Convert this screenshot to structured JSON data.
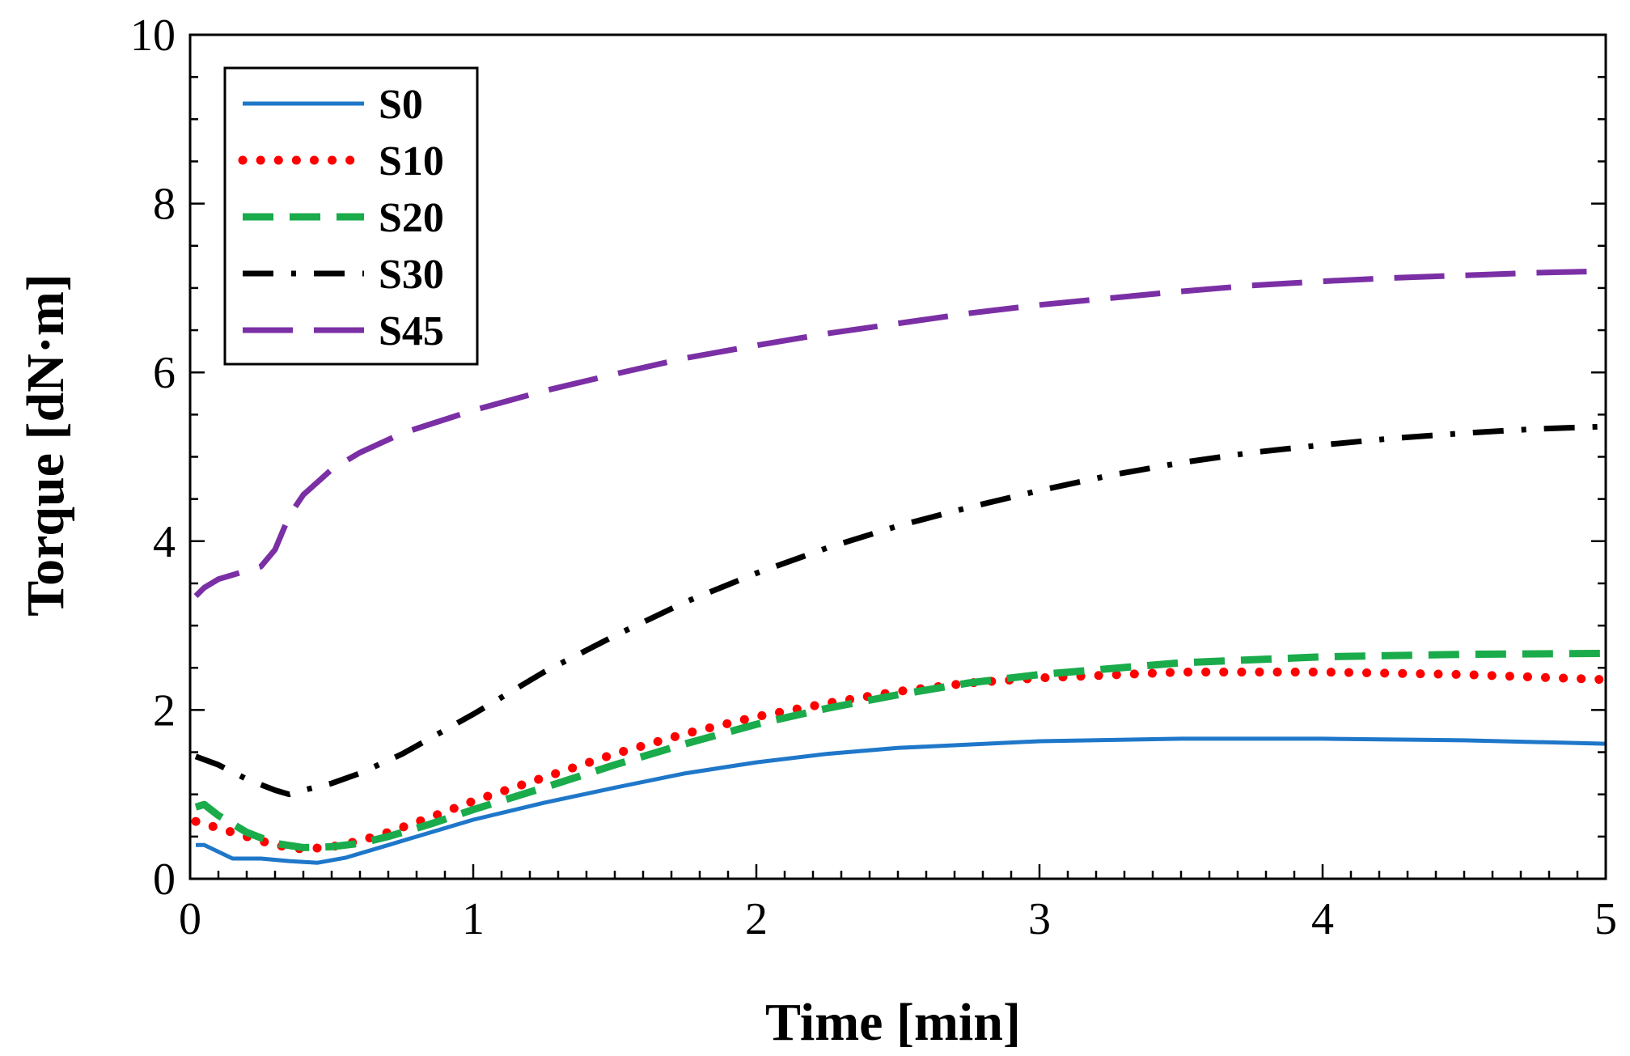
{
  "chart_data": {
    "type": "line",
    "title": "",
    "xlabel": "Time [min]",
    "ylabel": "Torque [dN·m]",
    "xlim": [
      0,
      5
    ],
    "ylim": [
      0,
      10
    ],
    "xticks": [
      0,
      1,
      2,
      3,
      4,
      5
    ],
    "yticks": [
      0,
      2,
      4,
      6,
      8,
      10
    ],
    "xtick_labels": [
      "0",
      "1",
      "2",
      "3",
      "4",
      "5"
    ],
    "ytick_labels": [
      "0",
      "2",
      "4",
      "6",
      "8",
      "10"
    ],
    "grid": false,
    "legend_position": "top-left",
    "series": [
      {
        "name": "S0",
        "color": "#1f77c9",
        "style": "solid",
        "x": [
          0.02,
          0.05,
          0.1,
          0.15,
          0.25,
          0.35,
          0.45,
          0.55,
          0.7,
          0.85,
          1.0,
          1.25,
          1.5,
          1.75,
          2.0,
          2.25,
          2.5,
          3.0,
          3.5,
          4.0,
          4.5,
          5.0
        ],
        "y": [
          0.4,
          0.4,
          0.32,
          0.24,
          0.24,
          0.21,
          0.19,
          0.25,
          0.4,
          0.55,
          0.7,
          0.9,
          1.08,
          1.25,
          1.38,
          1.48,
          1.55,
          1.63,
          1.66,
          1.66,
          1.64,
          1.6
        ]
      },
      {
        "name": "S10",
        "color": "#ff0000",
        "style": "dotted",
        "x": [
          0.02,
          0.1,
          0.2,
          0.3,
          0.4,
          0.5,
          0.6,
          0.7,
          0.85,
          1.0,
          1.25,
          1.5,
          1.75,
          2.0,
          2.25,
          2.5,
          2.75,
          3.0,
          3.5,
          4.0,
          4.5,
          5.0
        ],
        "y": [
          0.68,
          0.6,
          0.5,
          0.4,
          0.35,
          0.38,
          0.45,
          0.55,
          0.73,
          0.92,
          1.2,
          1.48,
          1.72,
          1.92,
          2.08,
          2.22,
          2.32,
          2.38,
          2.45,
          2.45,
          2.42,
          2.36
        ]
      },
      {
        "name": "S20",
        "color": "#1aab4b",
        "style": "dashed",
        "x": [
          0.02,
          0.05,
          0.1,
          0.2,
          0.3,
          0.4,
          0.5,
          0.6,
          0.7,
          0.85,
          1.0,
          1.25,
          1.5,
          1.75,
          2.0,
          2.25,
          2.5,
          2.75,
          3.0,
          3.5,
          4.0,
          4.5,
          5.0
        ],
        "y": [
          0.85,
          0.88,
          0.75,
          0.55,
          0.42,
          0.37,
          0.38,
          0.42,
          0.5,
          0.65,
          0.82,
          1.08,
          1.35,
          1.6,
          1.83,
          2.02,
          2.18,
          2.32,
          2.42,
          2.56,
          2.63,
          2.66,
          2.67
        ]
      },
      {
        "name": "S30",
        "color": "#000000",
        "style": "dashdot",
        "x": [
          0.02,
          0.1,
          0.2,
          0.3,
          0.35,
          0.4,
          0.5,
          0.6,
          0.75,
          1.0,
          1.25,
          1.5,
          1.75,
          2.0,
          2.25,
          2.5,
          2.75,
          3.0,
          3.25,
          3.5,
          3.75,
          4.0,
          4.25,
          4.5,
          4.75,
          5.0
        ],
        "y": [
          1.45,
          1.35,
          1.18,
          1.05,
          1.0,
          1.05,
          1.13,
          1.25,
          1.48,
          1.95,
          2.45,
          2.88,
          3.28,
          3.62,
          3.92,
          4.18,
          4.4,
          4.6,
          4.78,
          4.93,
          5.05,
          5.14,
          5.22,
          5.28,
          5.33,
          5.36
        ]
      },
      {
        "name": "S45",
        "color": "#7b2fa5",
        "style": "longdash",
        "x": [
          0.02,
          0.05,
          0.1,
          0.15,
          0.2,
          0.25,
          0.3,
          0.35,
          0.4,
          0.5,
          0.6,
          0.75,
          1.0,
          1.25,
          1.5,
          1.75,
          2.0,
          2.25,
          2.5,
          2.75,
          3.0,
          3.25,
          3.5,
          3.75,
          4.0,
          4.25,
          4.5,
          4.75,
          5.0
        ],
        "y": [
          3.35,
          3.45,
          3.55,
          3.6,
          3.65,
          3.7,
          3.9,
          4.3,
          4.55,
          4.85,
          5.05,
          5.28,
          5.55,
          5.78,
          5.98,
          6.17,
          6.32,
          6.46,
          6.58,
          6.7,
          6.8,
          6.88,
          6.96,
          7.03,
          7.08,
          7.12,
          7.15,
          7.18,
          7.2
        ]
      }
    ]
  }
}
